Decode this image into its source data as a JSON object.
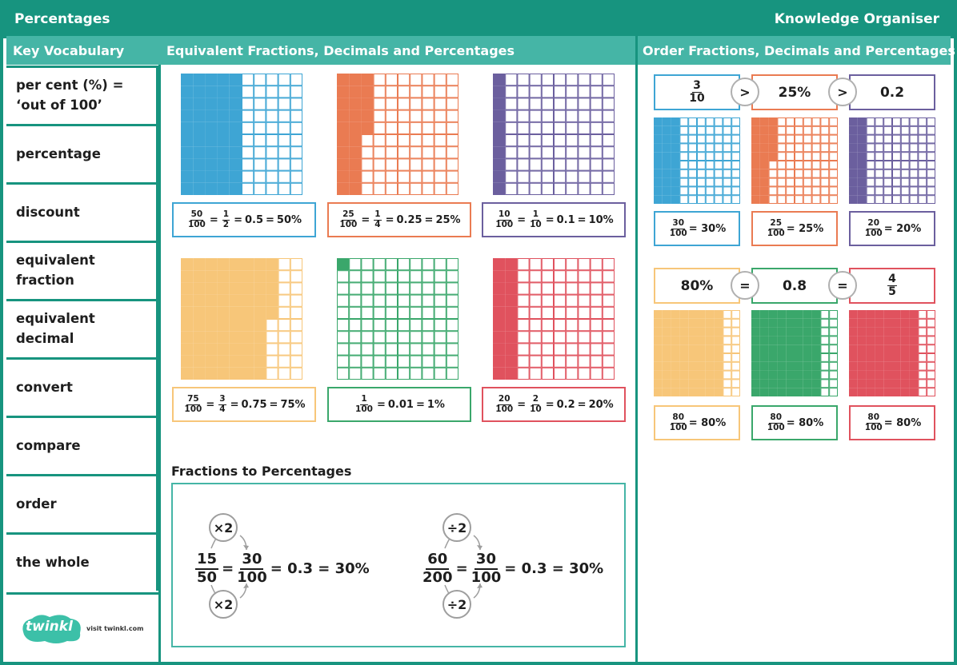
{
  "header": {
    "title": "Percentages",
    "subtitle": "Knowledge Organiser"
  },
  "columns": {
    "vocab": "Key Vocabulary",
    "equivalent": "Equivalent Fractions, Decimals and Percentages",
    "order": "Order Fractions, Decimals and Percentages"
  },
  "vocabulary": [
    "per cent (%) =\n‘out of 100’",
    "percentage",
    "discount",
    "equivalent fraction",
    "equivalent decimal",
    "convert",
    "compare",
    "order",
    "the whole"
  ],
  "colors": {
    "teal": "#17947f",
    "teal_light": "#45b5a6",
    "blue": "#3ea5d4",
    "orange": "#ea7b52",
    "purple": "#6b5f9e",
    "yellow": "#f7c679",
    "green": "#3aa76b",
    "red": "#e0525e"
  },
  "grids": [
    {
      "color": "blue",
      "filled": 50,
      "fraction_num": "50",
      "fraction_den": "100",
      "simplified_num": "1",
      "simplified_den": "2",
      "decimal": "0.5",
      "percent": "50%"
    },
    {
      "color": "orange",
      "filled": 25,
      "fraction_num": "25",
      "fraction_den": "100",
      "simplified_num": "1",
      "simplified_den": "4",
      "decimal": "0.25",
      "percent": "25%"
    },
    {
      "color": "purple",
      "filled": 10,
      "fraction_num": "10",
      "fraction_den": "100",
      "simplified_num": "1",
      "simplified_den": "10",
      "decimal": "0.1",
      "percent": "10%"
    },
    {
      "color": "yellow",
      "filled": 75,
      "fraction_num": "75",
      "fraction_den": "100",
      "simplified_num": "3",
      "simplified_den": "4",
      "decimal": "0.75",
      "percent": "75%"
    },
    {
      "color": "green",
      "filled": 1,
      "fraction_num": "1",
      "fraction_den": "100",
      "simplified_num": "",
      "simplified_den": "",
      "decimal": "0.01",
      "percent": "1%"
    },
    {
      "color": "red",
      "filled": 20,
      "fraction_num": "20",
      "fraction_den": "100",
      "simplified_num": "2",
      "simplified_den": "10",
      "decimal": "0.2",
      "percent": "20%"
    }
  ],
  "fractions_to_percentages": {
    "title": "Fractions to Percentages",
    "left": {
      "op": "×2",
      "a_num": "15",
      "a_den": "50",
      "b_num": "30",
      "b_den": "100",
      "rest": "= 0.3 = 30%"
    },
    "right": {
      "op": "÷2",
      "a_num": "60",
      "a_den": "200",
      "b_num": "30",
      "b_den": "100",
      "rest": "= 0.3 = 30%"
    }
  },
  "order": {
    "row1": {
      "items": [
        {
          "num": "3",
          "den": "10"
        },
        {
          "text": "25%"
        },
        {
          "text": "0.2"
        }
      ],
      "ops": [
        ">",
        ">"
      ],
      "grids": [
        {
          "color": "blue",
          "filled": 30,
          "num": "30",
          "den": "100",
          "percent": "= 30%"
        },
        {
          "color": "orange",
          "filled": 25,
          "num": "25",
          "den": "100",
          "percent": "= 25%"
        },
        {
          "color": "purple",
          "filled": 20,
          "num": "20",
          "den": "100",
          "percent": "= 20%"
        }
      ]
    },
    "row2": {
      "items": [
        {
          "text": "80%"
        },
        {
          "text": "0.8"
        },
        {
          "num": "4",
          "den": "5"
        }
      ],
      "ops": [
        "=",
        "="
      ],
      "grids": [
        {
          "color": "yellow",
          "filled": 80,
          "num": "80",
          "den": "100",
          "percent": "= 80%"
        },
        {
          "color": "green",
          "filled": 80,
          "num": "80",
          "den": "100",
          "percent": "= 80%"
        },
        {
          "color": "red",
          "filled": 80,
          "num": "80",
          "den": "100",
          "percent": "= 80%"
        }
      ]
    }
  },
  "footer": {
    "logo": "twinkl",
    "link": "visit twinkl.com"
  }
}
